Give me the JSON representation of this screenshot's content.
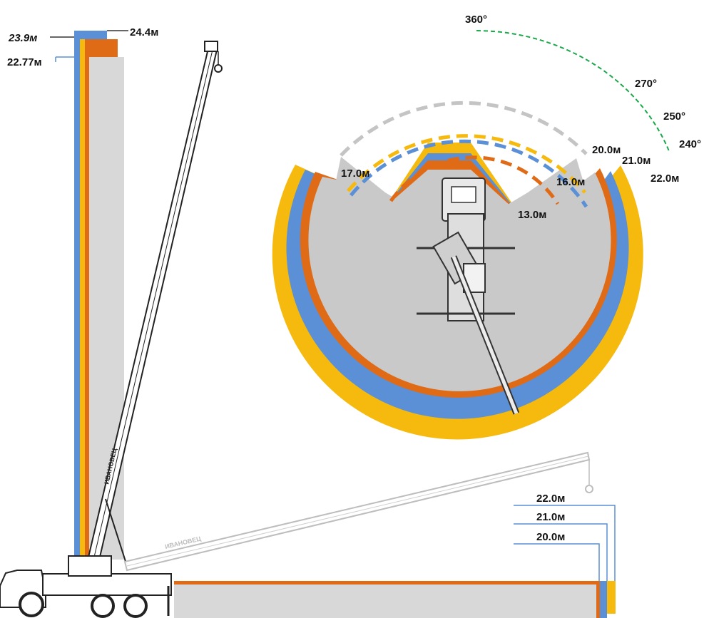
{
  "colors": {
    "blue": "#5b8fd6",
    "yellow": "#f6b90d",
    "orange": "#e06b17",
    "gray": "#d3d3d3",
    "dark_gray": "#bdbdbd",
    "green": "#1aa84a",
    "black": "#111111"
  },
  "height_labels": {
    "h_blue": "23.9м",
    "h_yellow": "24.4м",
    "h_orange": "22.77м"
  },
  "angle_labels": {
    "a360": "360°",
    "a270": "270°",
    "a250": "250°",
    "a240": "240°"
  },
  "radius_labels": {
    "r20": "20.0м",
    "r21": "21.0м",
    "r22": "22.0м",
    "r17": "17.0м",
    "r16": "16.0м",
    "r13": "13.0м"
  },
  "reach_labels": {
    "r22": "22.0м",
    "r21": "21.0м",
    "r20": "20.0м"
  },
  "brand": {
    "boom_text": "ИВАНОВЕЦ"
  }
}
